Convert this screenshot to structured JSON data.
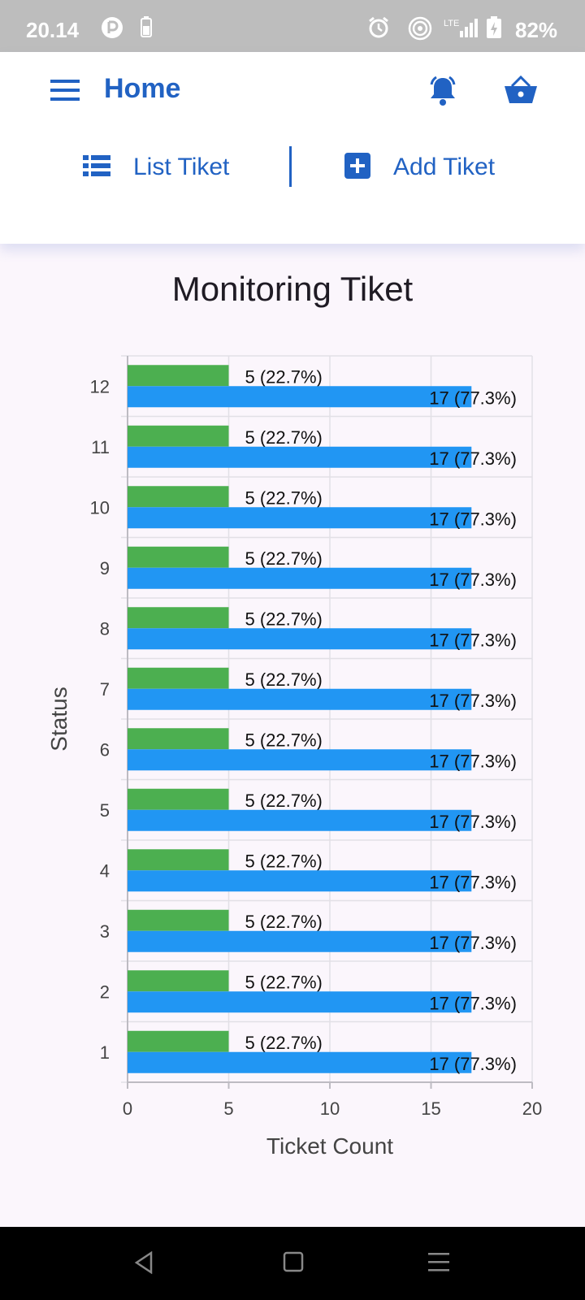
{
  "status_bar": {
    "time": "20.14",
    "battery": "82%",
    "icons": [
      "app-notification-icon",
      "battery-saver-icon",
      "alarm-icon",
      "hotspot-icon",
      "signal-icon",
      "battery-icon"
    ]
  },
  "app_bar": {
    "title": "Home",
    "icons": {
      "menu": "menu-icon",
      "bell": "bell-icon",
      "basket": "basket-icon"
    },
    "accent_color": "#2162c3"
  },
  "nav": {
    "list_label": "List Tiket",
    "add_label": "Add Tiket"
  },
  "chart_title": "Monitoring Tiket",
  "chart_data": {
    "type": "bar",
    "orientation": "horizontal",
    "title": "Monitoring Tiket",
    "xlabel": "Ticket Count",
    "ylabel": "Status",
    "xlim": [
      0,
      20
    ],
    "xticks": [
      "0",
      "5",
      "10",
      "15",
      "20"
    ],
    "categories": [
      "1",
      "2",
      "3",
      "4",
      "5",
      "6",
      "7",
      "8",
      "9",
      "10",
      "11",
      "12"
    ],
    "series": [
      {
        "color": "#4caf50",
        "values": [
          5,
          5,
          5,
          5,
          5,
          5,
          5,
          5,
          5,
          5,
          5,
          5
        ],
        "labels": [
          "5 (22.7%)",
          "5 (22.7%)",
          "5 (22.7%)",
          "5 (22.7%)",
          "5 (22.7%)",
          "5 (22.7%)",
          "5 (22.7%)",
          "5 (22.7%)",
          "5 (22.7%)",
          "5 (22.7%)",
          "5 (22.7%)",
          "5 (22.7%)"
        ]
      },
      {
        "color": "#2196f3",
        "values": [
          17,
          17,
          17,
          17,
          17,
          17,
          17,
          17,
          17,
          17,
          17,
          17
        ],
        "labels": [
          "17 (77.3%)",
          "17 (77.3%)",
          "17 (77.3%)",
          "17 (77.3%)",
          "17 (77.3%)",
          "17 (77.3%)",
          "17 (77.3%)",
          "17 (77.3%)",
          "17 (77.3%)",
          "17 (77.3%)",
          "17 (77.3%)",
          "17 (77.3%)"
        ]
      }
    ],
    "grid": true
  },
  "system_nav": {
    "icons": [
      "back-icon",
      "home-icon",
      "recents-icon"
    ]
  }
}
